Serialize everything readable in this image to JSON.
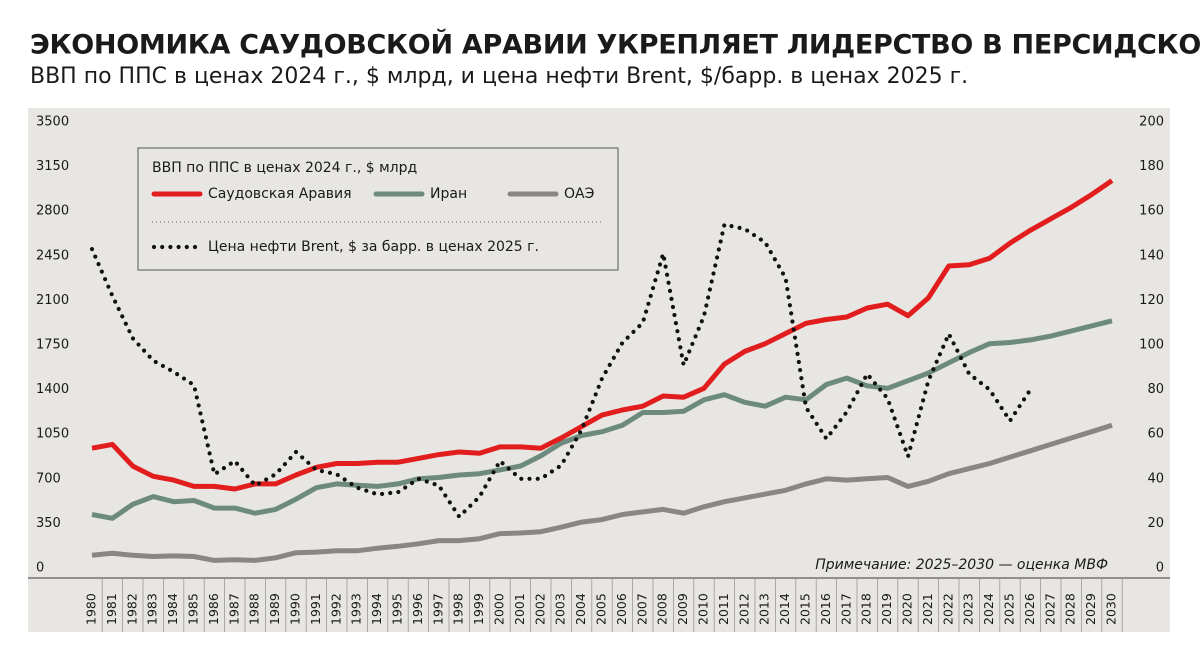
{
  "chart_data": {
    "type": "line",
    "title": "ЭКОНОМИКА САУДОВСКОЙ АРАВИИ УКРЕПЛЯЕТ ЛИДЕРСТВО В ПЕРСИДСКОМ ЗАЛИВЕ",
    "subtitle": "ВВП по ППС в ценах 2024 г., $ млрд, и цена нефти Brent, $/барр. в ценах 2025 г.",
    "legend_title": "ВВП по ППС в ценах 2024 г., $ млрд",
    "annotation": "Примечание: 2025–2030 — оценка МВФ",
    "categories": [
      "1980",
      "1981",
      "1982",
      "1983",
      "1984",
      "1985",
      "1986",
      "1987",
      "1988",
      "1989",
      "1990",
      "1991",
      "1992",
      "1993",
      "1994",
      "1995",
      "1996",
      "1997",
      "1998",
      "1999",
      "2000",
      "2001",
      "2002",
      "2003",
      "2004",
      "2005",
      "2006",
      "2007",
      "2008",
      "2009",
      "2010",
      "2011",
      "2012",
      "2013",
      "2014",
      "2015",
      "2016",
      "2017",
      "2018",
      "2019",
      "2020",
      "2021",
      "2022",
      "2023",
      "2024",
      "2025",
      "2026",
      "2027",
      "2028",
      "2029",
      "2030"
    ],
    "series": [
      {
        "name": "Саудовская Аравия",
        "color": "#e11d1d",
        "style": "solid",
        "values": [
          940,
          970,
          800,
          720,
          690,
          640,
          640,
          620,
          660,
          660,
          730,
          790,
          820,
          820,
          830,
          830,
          860,
          890,
          910,
          900,
          950,
          950,
          940,
          1020,
          1110,
          1200,
          1240,
          1270,
          1350,
          1340,
          1410,
          1600,
          1700,
          1760,
          1840,
          1920,
          1950,
          1970,
          2040,
          2070,
          1980,
          2120,
          2370,
          2380,
          2430,
          2550,
          2650,
          2740,
          2830,
          2930,
          3040
        ]
      },
      {
        "name": "Иран",
        "color": "#6d8a7f",
        "style": "solid",
        "values": [
          420,
          390,
          500,
          560,
          520,
          530,
          470,
          470,
          430,
          460,
          540,
          630,
          660,
          650,
          640,
          660,
          700,
          710,
          730,
          740,
          770,
          800,
          880,
          980,
          1040,
          1070,
          1120,
          1220,
          1220,
          1230,
          1320,
          1360,
          1300,
          1270,
          1340,
          1320,
          1440,
          1490,
          1430,
          1410,
          1470,
          1530,
          1610,
          1690,
          1760,
          1770,
          1790,
          1820,
          1860,
          1900,
          1940
        ]
      },
      {
        "name": "ОАЭ",
        "color": "#8a8782",
        "style": "solid",
        "values": [
          100,
          115,
          100,
          90,
          95,
          90,
          60,
          65,
          60,
          80,
          120,
          125,
          135,
          135,
          155,
          170,
          190,
          215,
          215,
          230,
          270,
          275,
          285,
          320,
          360,
          380,
          420,
          440,
          460,
          430,
          480,
          520,
          550,
          580,
          610,
          660,
          700,
          690,
          700,
          710,
          640,
          680,
          740,
          780,
          820,
          870,
          920,
          970,
          1020,
          1070,
          1120
        ]
      },
      {
        "name": "Цена нефти Brent, $ за барр. в ценах 2025 г.",
        "color": "#111111",
        "style": "dotted",
        "axis": "y2",
        "values": [
          143,
          122,
          103,
          93,
          88,
          82,
          42,
          48,
          37,
          42,
          52,
          44,
          42,
          36,
          33,
          34,
          40,
          37,
          23,
          32,
          48,
          40,
          40,
          46,
          62,
          85,
          101,
          110,
          141,
          91,
          113,
          154,
          152,
          146,
          130,
          72,
          58,
          70,
          87,
          76,
          50,
          84,
          105,
          87,
          80,
          66,
          80,
          null,
          null,
          null,
          null
        ]
      }
    ],
    "ylim": [
      0,
      3500
    ],
    "yticks": [
      0,
      350,
      700,
      1050,
      1400,
      1750,
      2100,
      2450,
      2800,
      3150,
      3500
    ],
    "y2lim": [
      0,
      200
    ],
    "y2ticks": [
      0,
      20,
      40,
      60,
      80,
      100,
      120,
      140,
      160,
      180,
      200
    ],
    "grid": false
  }
}
